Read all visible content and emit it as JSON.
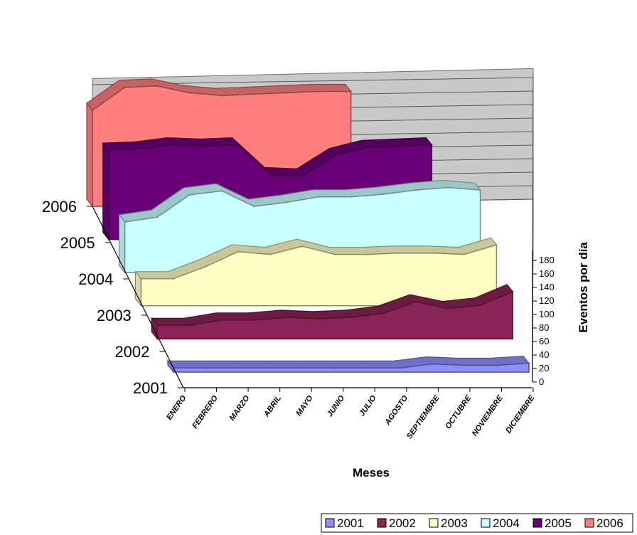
{
  "chart_data": {
    "type": "area",
    "title": "",
    "xlabel": "Meses",
    "ylabel": "Eventos por día",
    "ylim": [
      0,
      180
    ],
    "y_ticks": [
      0,
      20,
      40,
      60,
      80,
      100,
      120,
      140,
      160,
      180
    ],
    "categories": [
      "ENERO",
      "FEBRERO",
      "MARZO",
      "ABRIL",
      "MAYO",
      "JUNIO",
      "JULIO",
      "AGOSTO",
      "SEPTIEMBRE",
      "OCTUBRE",
      "NOVIEMBRE",
      "DICIEMBRE"
    ],
    "legend_position": "bottom-right",
    "series": [
      {
        "name": "2001",
        "color": "#8f8fff",
        "values": [
          6,
          6,
          6,
          6,
          6,
          6,
          6,
          6,
          12,
          10,
          10,
          13
        ]
      },
      {
        "name": "2002",
        "color": "#8b2456",
        "values": [
          20,
          20,
          28,
          28,
          32,
          30,
          32,
          38,
          55,
          45,
          50,
          70
        ]
      },
      {
        "name": "2003",
        "color": "#ffffc4",
        "values": [
          40,
          40,
          58,
          80,
          76,
          88,
          76,
          76,
          78,
          78,
          76,
          90
        ]
      },
      {
        "name": "2004",
        "color": "#c8ffff",
        "values": [
          75,
          82,
          115,
          121,
          98,
          104,
          112,
          112,
          116,
          122,
          126,
          122
        ]
      },
      {
        "name": "2005",
        "color": "#6a0078",
        "values": [
          132,
          134,
          140,
          138,
          140,
          96,
          94,
          124,
          136,
          138,
          140,
          null
        ]
      },
      {
        "name": "2006",
        "color": "#ff7f7f",
        "values": [
          142,
          176,
          178,
          168,
          164,
          166,
          168,
          170,
          170,
          null,
          null,
          null
        ]
      }
    ]
  }
}
